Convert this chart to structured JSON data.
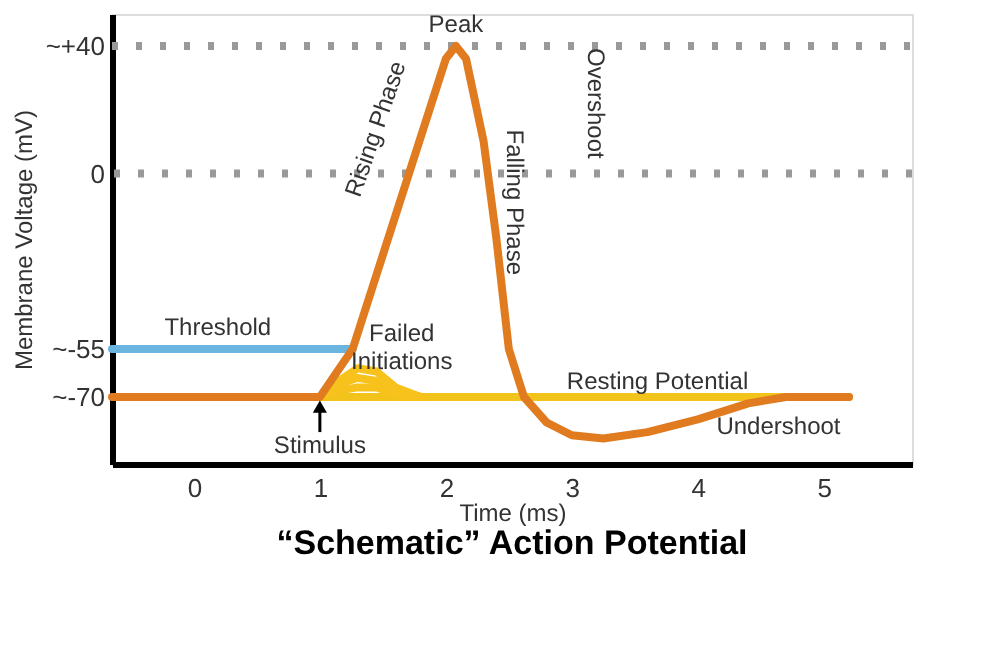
{
  "chart_data": {
    "type": "line",
    "title": "“Schematic” Action Potential",
    "xlabel": "Time (ms)",
    "ylabel": "Membrane Voltage (mV)",
    "xlim": [
      -0.65,
      5.7
    ],
    "xticks": [
      0,
      1,
      2,
      3,
      4,
      5
    ],
    "ylim": [
      -91,
      50
    ],
    "yticks": [
      {
        "value": 40,
        "label": "~+40"
      },
      0,
      {
        "value": -55,
        "label": "~-55"
      },
      {
        "value": -70,
        "label": "~-70"
      }
    ],
    "grid": false,
    "marker": "none",
    "line_style": "solid",
    "series": [
      {
        "color": "#6ab4e0",
        "x": [
          -0.65,
          1.26
        ],
        "values": [
          -55,
          -55
        ]
      },
      {
        "color": "#f2c31b",
        "x": [
          1.0,
          5.2
        ],
        "values": [
          -70,
          -70
        ]
      },
      {
        "color": "#f7c21c",
        "x": [
          1.0,
          1.15,
          1.3,
          1.45,
          1.6,
          1.8
        ],
        "values": [
          -70,
          -65,
          -61,
          -62,
          -67,
          -70
        ]
      },
      {
        "color": "#f7c21c",
        "x": [
          1.0,
          1.15,
          1.3,
          1.45,
          1.6,
          1.8
        ],
        "values": [
          -70,
          -66,
          -64,
          -65,
          -68,
          -70
        ]
      },
      {
        "color": "#f7c21c",
        "x": [
          1.0,
          1.15,
          1.3,
          1.45,
          1.6,
          1.8
        ],
        "values": [
          -70,
          -68,
          -67,
          -67,
          -69,
          -70
        ]
      },
      {
        "color": "#e07b20",
        "x": [
          -0.65,
          1.0,
          1.26,
          2.0,
          2.08,
          2.16,
          2.3,
          2.4,
          2.5,
          2.62,
          2.8,
          3.0,
          3.25,
          3.6,
          4.0,
          4.4,
          4.7,
          5.2
        ],
        "values": [
          -70,
          -70,
          -55,
          36,
          40,
          36,
          10,
          -20,
          -55,
          -70,
          -78,
          -82,
          -83,
          -81,
          -77,
          -72,
          -70,
          -70
        ]
      }
    ],
    "ref_lines": [
      {
        "axis": "y",
        "value": 40,
        "color": "#999999",
        "line_style": "dotted"
      },
      {
        "axis": "y",
        "value": 0,
        "color": "#999999",
        "line_style": "dotted"
      }
    ],
    "annotations": [
      "Peak",
      "Rising Phase",
      "Falling Phase",
      "Overshoot",
      "Threshold",
      "Failed Initiations",
      "Resting Potential",
      "Undershoot",
      "Stimulus"
    ]
  }
}
